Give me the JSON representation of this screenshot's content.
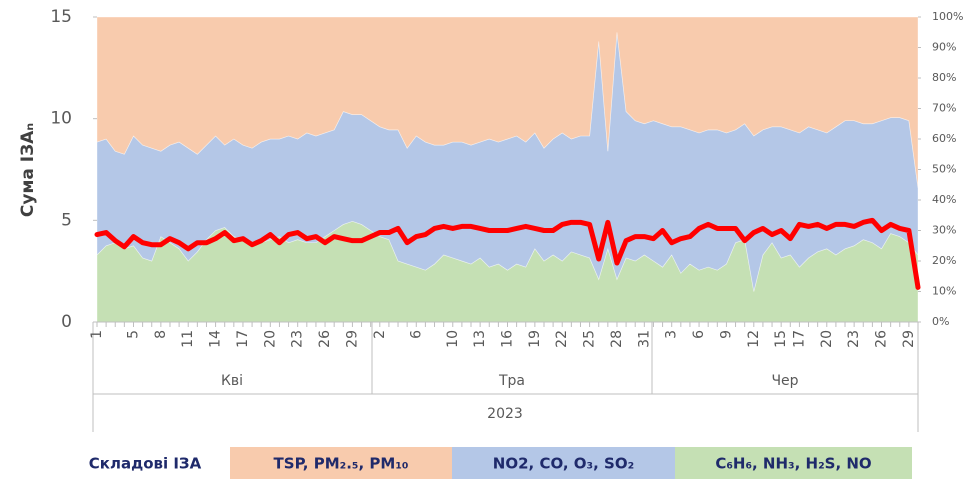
{
  "chart_data": {
    "type": "stacked_area_line",
    "y_label": "Сума ІЗАₙ",
    "categories": [
      "1",
      null,
      null,
      null,
      "5",
      null,
      null,
      "8",
      null,
      null,
      "11",
      null,
      null,
      "14",
      null,
      null,
      "17",
      null,
      null,
      "20",
      null,
      null,
      "23",
      null,
      null,
      "26",
      null,
      null,
      "29",
      null,
      null,
      "2",
      null,
      null,
      null,
      "6",
      null,
      null,
      null,
      "10",
      null,
      null,
      "13",
      null,
      null,
      "16",
      null,
      null,
      "19",
      null,
      null,
      "22",
      null,
      null,
      "25",
      null,
      null,
      "28",
      null,
      null,
      "31",
      null,
      null,
      "3",
      null,
      null,
      "6",
      null,
      null,
      "9",
      null,
      null,
      "12",
      null,
      null,
      "15",
      null,
      "17",
      null,
      null,
      "20",
      null,
      null,
      "23",
      null,
      null,
      "26",
      null,
      null,
      "29",
      null
    ],
    "months": [
      "Кві",
      "Тра",
      "Чер"
    ],
    "year": "2023",
    "legend_title": "Складові ІЗА",
    "series": [
      {
        "name": "TSP, PM₂.₅, PM₁₀",
        "color": "#f8cbad",
        "axis": "y2",
        "values": [
          41,
          40,
          44,
          45,
          39,
          42,
          43,
          44,
          42,
          41,
          43,
          45,
          42,
          39,
          42,
          40,
          42,
          43,
          41,
          40,
          40,
          39,
          40,
          38,
          39,
          38,
          37,
          31,
          32,
          32,
          34,
          36,
          37,
          37,
          43,
          39,
          41,
          42,
          42,
          41,
          41,
          42,
          41,
          40,
          41,
          40,
          39,
          41,
          38,
          43,
          40,
          38,
          40,
          39,
          39,
          8,
          44,
          5,
          31,
          34,
          35,
          34,
          35,
          36,
          36,
          37,
          38,
          37,
          37,
          38,
          37,
          35,
          39,
          37,
          36,
          36,
          37,
          38,
          36,
          37,
          38,
          36,
          34,
          34,
          35,
          35,
          34,
          33,
          33,
          34,
          56
        ]
      },
      {
        "name": "NO2, CO, O₃, SO₂",
        "color": "#b4c7e7",
        "axis": "y2",
        "values": [
          37,
          35,
          30,
          31,
          36,
          37,
          37,
          28,
          32,
          35,
          37,
          32,
          31,
          31,
          27,
          32,
          31,
          32,
          33,
          33,
          32,
          35,
          33,
          36,
          35,
          34,
          33,
          37,
          35,
          36,
          36,
          36,
          36,
          43,
          38,
          43,
          42,
          39,
          36,
          38,
          39,
          39,
          38,
          42,
          40,
          43,
          42,
          41,
          38,
          37,
          38,
          42,
          37,
          39,
          40,
          78,
          32,
          81,
          48,
          46,
          43,
          46,
          47,
          42,
          48,
          44,
          45,
          45,
          46,
          43,
          37,
          38,
          51,
          41,
          38,
          43,
          41,
          44,
          43,
          40,
          38,
          42,
          42,
          41,
          38,
          39,
          42,
          38,
          39,
          40,
          22
        ]
      },
      {
        "name": "C₆H₆, NH₃, H₂S, NO",
        "color": "#c5e0b4",
        "axis": "y2",
        "values": [
          22,
          25,
          26,
          24,
          25,
          21,
          20,
          28,
          26,
          24,
          20,
          23,
          27,
          30,
          31,
          28,
          27,
          25,
          26,
          27,
          28,
          26,
          27,
          26,
          26,
          28,
          30,
          32,
          33,
          32,
          30,
          28,
          27,
          20,
          19,
          18,
          17,
          19,
          22,
          21,
          20,
          19,
          21,
          18,
          19,
          17,
          19,
          18,
          24,
          20,
          22,
          20,
          23,
          22,
          21,
          14,
          24,
          14,
          21,
          20,
          22,
          20,
          18,
          22,
          16,
          19,
          17,
          18,
          17,
          19,
          26,
          27,
          10,
          22,
          26,
          21,
          22,
          18,
          21,
          23,
          24,
          22,
          24,
          25,
          27,
          26,
          24,
          29,
          28,
          26,
          22
        ]
      }
    ],
    "line": {
      "color": "#ff0000",
      "values": [
        4.3,
        4.4,
        4.0,
        3.7,
        4.2,
        3.9,
        3.8,
        3.8,
        4.1,
        3.9,
        3.6,
        3.9,
        3.9,
        4.1,
        4.4,
        4.0,
        4.1,
        3.8,
        4.0,
        4.3,
        3.9,
        4.3,
        4.4,
        4.1,
        4.2,
        3.9,
        4.2,
        4.1,
        4.0,
        4.0,
        4.2,
        4.4,
        4.4,
        4.6,
        3.9,
        4.2,
        4.3,
        4.6,
        4.7,
        4.6,
        4.7,
        4.7,
        4.6,
        4.5,
        4.5,
        4.5,
        4.6,
        4.7,
        4.6,
        4.5,
        4.5,
        4.8,
        4.9,
        4.9,
        4.8,
        3.1,
        4.9,
        2.9,
        4.0,
        4.2,
        4.2,
        4.1,
        4.5,
        3.9,
        4.1,
        4.2,
        4.6,
        4.8,
        4.6,
        4.6,
        4.6,
        4.0,
        4.4,
        4.6,
        4.3,
        4.5,
        4.1,
        4.8,
        4.7,
        4.8,
        4.6,
        4.8,
        4.8,
        4.7,
        4.9,
        5.0,
        4.5,
        4.8,
        4.6,
        4.5,
        1.7
      ]
    },
    "ylim": [
      0,
      15
    ],
    "yticks": [
      0,
      5,
      10,
      15
    ],
    "y2lim": [
      0,
      100
    ],
    "y2ticks": [
      {
        "value": 0,
        "label": "0%"
      },
      {
        "value": 10,
        "label": "10%"
      },
      {
        "value": 20,
        "label": "20%"
      },
      {
        "value": 30,
        "label": "30%"
      },
      {
        "value": 40,
        "label": "40%"
      },
      {
        "value": 50,
        "label": "50%"
      },
      {
        "value": 60,
        "label": "60%"
      },
      {
        "value": 70,
        "label": "70%"
      },
      {
        "value": 80,
        "label": "80%"
      },
      {
        "value": 90,
        "label": "90%"
      },
      {
        "value": 100,
        "label": "100%"
      }
    ]
  }
}
